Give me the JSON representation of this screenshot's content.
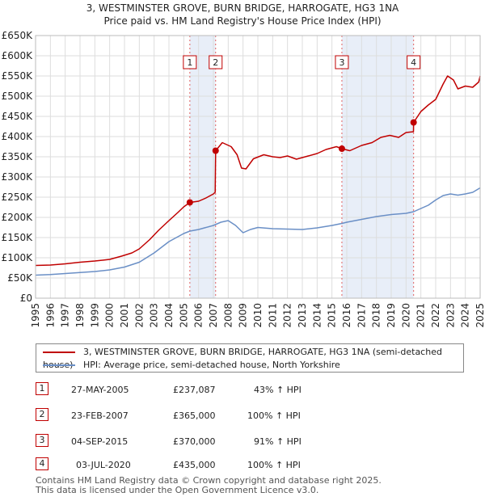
{
  "chart_data": {
    "type": "line",
    "title": "3, WESTMINSTER GROVE, BURN BRIDGE, HARROGATE, HG3 1NA",
    "subtitle": "Price paid vs. HM Land Registry's House Price Index (HPI)",
    "xlim": [
      1995,
      2025
    ],
    "ylim": [
      0,
      650000
    ],
    "x_ticks": [
      "1995",
      "1996",
      "1997",
      "1998",
      "1999",
      "2000",
      "2001",
      "2002",
      "2003",
      "2004",
      "2005",
      "2006",
      "2007",
      "2008",
      "2009",
      "2010",
      "2011",
      "2012",
      "2013",
      "2014",
      "2015",
      "2016",
      "2017",
      "2018",
      "2019",
      "2020",
      "2021",
      "2022",
      "2023",
      "2024",
      "2025"
    ],
    "y_ticks": [
      {
        "value": 0,
        "label": "£0"
      },
      {
        "value": 50000,
        "label": "£50K"
      },
      {
        "value": 100000,
        "label": "£100K"
      },
      {
        "value": 150000,
        "label": "£150K"
      },
      {
        "value": 200000,
        "label": "£200K"
      },
      {
        "value": 250000,
        "label": "£250K"
      },
      {
        "value": 300000,
        "label": "£300K"
      },
      {
        "value": 350000,
        "label": "£350K"
      },
      {
        "value": 400000,
        "label": "£400K"
      },
      {
        "value": 450000,
        "label": "£450K"
      },
      {
        "value": 500000,
        "label": "£500K"
      },
      {
        "value": 550000,
        "label": "£550K"
      },
      {
        "value": 600000,
        "label": "£600K"
      },
      {
        "value": 650000,
        "label": "£650K"
      }
    ],
    "grid": true,
    "series": [
      {
        "name": "3, WESTMINSTER GROVE, BURN BRIDGE, HARROGATE, HG3 1NA (semi-detached house)",
        "color": "#c00000",
        "points": [
          [
            1995.0,
            81000
          ],
          [
            1996.0,
            82000
          ],
          [
            1997.0,
            85000
          ],
          [
            1998.0,
            89000
          ],
          [
            1999.0,
            92000
          ],
          [
            2000.0,
            96000
          ],
          [
            2000.8,
            104000
          ],
          [
            2001.5,
            112000
          ],
          [
            2002.0,
            122000
          ],
          [
            2002.7,
            145000
          ],
          [
            2003.3,
            168000
          ],
          [
            2004.0,
            192000
          ],
          [
            2004.6,
            212000
          ],
          [
            2005.0,
            226000
          ],
          [
            2005.41,
            237087
          ],
          [
            2006.0,
            240000
          ],
          [
            2006.5,
            248000
          ],
          [
            2007.0,
            258000
          ],
          [
            2007.12,
            262000
          ],
          [
            2007.15,
            365000
          ],
          [
            2007.6,
            385000
          ],
          [
            2008.2,
            375000
          ],
          [
            2008.6,
            355000
          ],
          [
            2008.9,
            322000
          ],
          [
            2009.2,
            320000
          ],
          [
            2009.7,
            345000
          ],
          [
            2010.4,
            355000
          ],
          [
            2011.0,
            350000
          ],
          [
            2011.5,
            348000
          ],
          [
            2012.0,
            352000
          ],
          [
            2012.6,
            344000
          ],
          [
            2013.2,
            350000
          ],
          [
            2014.0,
            358000
          ],
          [
            2014.6,
            368000
          ],
          [
            2015.3,
            375000
          ],
          [
            2015.67,
            370000
          ],
          [
            2016.2,
            365000
          ],
          [
            2017.0,
            378000
          ],
          [
            2017.7,
            385000
          ],
          [
            2018.3,
            398000
          ],
          [
            2018.9,
            403000
          ],
          [
            2019.5,
            398000
          ],
          [
            2020.0,
            410000
          ],
          [
            2020.5,
            412000
          ],
          [
            2020.51,
            435000
          ],
          [
            2021.0,
            462000
          ],
          [
            2021.5,
            478000
          ],
          [
            2022.0,
            492000
          ],
          [
            2022.5,
            530000
          ],
          [
            2022.8,
            550000
          ],
          [
            2023.2,
            540000
          ],
          [
            2023.5,
            518000
          ],
          [
            2024.0,
            525000
          ],
          [
            2024.5,
            522000
          ],
          [
            2024.9,
            535000
          ],
          [
            2025.0,
            550000
          ]
        ]
      },
      {
        "name": "HPI: Average price, semi-detached house, North Yorkshire",
        "color": "#6a8fc6",
        "points": [
          [
            1995.0,
            57000
          ],
          [
            1996.0,
            58500
          ],
          [
            1997.0,
            61000
          ],
          [
            1998.0,
            63500
          ],
          [
            1999.0,
            66000
          ],
          [
            2000.0,
            70000
          ],
          [
            2001.0,
            77000
          ],
          [
            2002.0,
            89000
          ],
          [
            2003.0,
            112000
          ],
          [
            2004.0,
            140000
          ],
          [
            2005.0,
            160000
          ],
          [
            2005.41,
            166000
          ],
          [
            2006.0,
            170000
          ],
          [
            2007.0,
            180000
          ],
          [
            2007.5,
            188000
          ],
          [
            2008.0,
            192000
          ],
          [
            2008.5,
            180000
          ],
          [
            2009.0,
            162000
          ],
          [
            2009.5,
            170000
          ],
          [
            2010.0,
            175000
          ],
          [
            2011.0,
            172000
          ],
          [
            2012.0,
            171000
          ],
          [
            2013.0,
            170000
          ],
          [
            2014.0,
            174000
          ],
          [
            2015.0,
            180000
          ],
          [
            2015.67,
            185000
          ],
          [
            2016.0,
            188000
          ],
          [
            2017.0,
            195000
          ],
          [
            2018.0,
            202000
          ],
          [
            2019.0,
            207000
          ],
          [
            2020.0,
            210000
          ],
          [
            2020.51,
            214000
          ],
          [
            2021.0,
            222000
          ],
          [
            2021.5,
            230000
          ],
          [
            2022.0,
            243000
          ],
          [
            2022.5,
            254000
          ],
          [
            2023.0,
            258000
          ],
          [
            2023.5,
            255000
          ],
          [
            2024.0,
            258000
          ],
          [
            2024.5,
            262000
          ],
          [
            2025.0,
            273000
          ]
        ]
      }
    ],
    "transactions": [
      {
        "id": "1",
        "x": 2005.41,
        "price": 237087,
        "date": "27-MAY-2005",
        "price_label": "£237,087",
        "hpi": "43% ↑ HPI"
      },
      {
        "id": "2",
        "x": 2007.15,
        "price": 365000,
        "date": "23-FEB-2007",
        "price_label": "£365,000",
        "hpi": "100% ↑ HPI"
      },
      {
        "id": "3",
        "x": 2015.67,
        "price": 370000,
        "date": "04-SEP-2015",
        "price_label": "£370,000",
        "hpi": "91% ↑ HPI"
      },
      {
        "id": "4",
        "x": 2020.51,
        "price": 435000,
        "date": "03-JUL-2020",
        "price_label": "£435,000",
        "hpi": "100% ↑ HPI"
      }
    ],
    "shaded_spans": [
      [
        2005.41,
        2007.15
      ],
      [
        2015.67,
        2020.51
      ]
    ]
  },
  "legend": {
    "property_label": "3, WESTMINSTER GROVE, BURN BRIDGE, HARROGATE, HG3 1NA (semi-detached house)",
    "hpi_label": "HPI: Average price, semi-detached house, North Yorkshire",
    "property_color": "#c00000",
    "hpi_color": "#6a8fc6"
  },
  "footer": {
    "line1": "Contains HM Land Registry data © Crown copyright and database right 2025.",
    "line2": "This data is licensed under the Open Government Licence v3.0."
  }
}
